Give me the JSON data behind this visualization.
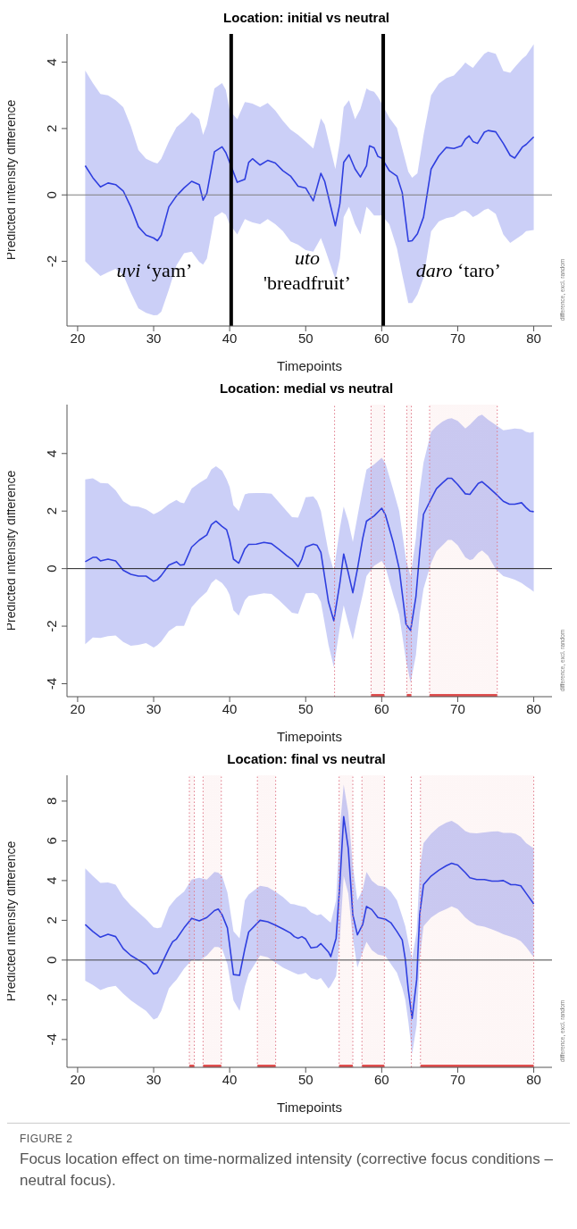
{
  "chart_data": [
    {
      "type": "line",
      "title": "Location: initial vs neutral",
      "xlabel": "Timepoints",
      "ylabel": "Predicted intensity difference",
      "xlim": [
        18.6,
        82.4
      ],
      "xticks": [
        20,
        30,
        40,
        50,
        60,
        70,
        80
      ],
      "ylim": [
        -3.95,
        4.85
      ],
      "yticks": [
        -2,
        0,
        2,
        4
      ],
      "marker": "none",
      "series": [
        {
          "color": "#2f3fdf",
          "x": [
            21,
            22,
            23,
            24,
            25,
            26,
            27,
            28,
            29,
            30,
            30.5,
            31,
            32,
            33,
            34,
            35,
            36,
            36.5,
            37,
            38,
            39,
            39.5,
            40,
            41,
            42,
            42.5,
            43,
            44,
            45,
            46,
            47,
            48,
            49,
            50,
            51,
            52,
            52.5,
            53.9,
            54.5,
            55,
            55.7,
            56.5,
            57.2,
            58,
            58.4,
            59,
            59.5,
            60,
            61,
            62,
            62.7,
            63.5,
            64,
            64.7,
            65.5,
            66.5,
            67.5,
            68.5,
            69.5,
            70.5,
            71,
            71.5,
            72,
            72.6,
            73.5,
            74,
            75,
            76,
            76.9,
            77.5,
            78.5,
            79,
            80
          ],
          "values": [
            0.88,
            0.52,
            0.24,
            0.36,
            0.31,
            0.12,
            -0.36,
            -0.96,
            -1.21,
            -1.3,
            -1.38,
            -1.21,
            -0.36,
            -0.03,
            0.21,
            0.41,
            0.31,
            -0.16,
            0.05,
            1.3,
            1.45,
            1.27,
            0.98,
            0.38,
            0.47,
            0.98,
            1.09,
            0.9,
            1.04,
            0.96,
            0.73,
            0.57,
            0.26,
            0.21,
            -0.18,
            0.65,
            0.41,
            -0.93,
            -0.26,
            0.98,
            1.21,
            0.78,
            0.54,
            0.88,
            1.48,
            1.42,
            1.16,
            1.11,
            0.73,
            0.57,
            0.07,
            -1.4,
            -1.38,
            -1.17,
            -0.67,
            0.78,
            1.17,
            1.43,
            1.4,
            1.48,
            1.68,
            1.78,
            1.61,
            1.55,
            1.89,
            1.94,
            1.9,
            1.55,
            1.19,
            1.11,
            1.44,
            1.52,
            1.75
          ],
          "lower": [
            -2.0,
            -2.23,
            -2.44,
            -2.33,
            -2.23,
            -2.41,
            -2.95,
            -3.42,
            -3.55,
            -3.63,
            -3.62,
            -3.52,
            -2.85,
            -2.12,
            -1.76,
            -1.71,
            -2.02,
            -2.1,
            -1.92,
            -0.67,
            -0.52,
            -0.6,
            -0.88,
            -1.19,
            -0.73,
            -0.78,
            -0.83,
            -0.88,
            -0.73,
            -0.88,
            -1.09,
            -1.4,
            -1.5,
            -1.66,
            -1.71,
            -1.3,
            -1.6,
            -2.54,
            -1.92,
            -0.67,
            -0.36,
            -0.88,
            -1.19,
            -0.36,
            -0.45,
            -0.62,
            -0.62,
            -0.62,
            -0.88,
            -1.61,
            -2.4,
            -3.26,
            -3.26,
            -3.0,
            -2.5,
            -1.1,
            -0.8,
            -0.7,
            -0.65,
            -0.5,
            -0.47,
            -0.55,
            -0.67,
            -0.6,
            -0.45,
            -0.41,
            -0.57,
            -1.19,
            -1.45,
            -1.35,
            -1.2,
            -1.09,
            -1.06
          ],
          "upper": [
            3.75,
            3.37,
            3.04,
            3.0,
            2.85,
            2.64,
            2.07,
            1.35,
            1.09,
            0.98,
            0.95,
            1.09,
            1.61,
            2.04,
            2.23,
            2.49,
            2.28,
            1.81,
            2.12,
            3.21,
            3.37,
            3.16,
            2.54,
            2.28,
            2.8,
            2.78,
            2.75,
            2.64,
            2.77,
            2.54,
            2.23,
            1.97,
            1.81,
            1.61,
            1.4,
            2.31,
            2.12,
            0.78,
            1.61,
            2.64,
            2.85,
            2.28,
            2.59,
            3.21,
            3.15,
            3.11,
            2.95,
            2.75,
            2.33,
            2.02,
            1.4,
            0.7,
            0.52,
            0.65,
            1.8,
            3.0,
            3.35,
            3.52,
            3.6,
            3.85,
            3.99,
            3.9,
            3.83,
            4.0,
            4.25,
            4.32,
            4.25,
            3.73,
            3.68,
            3.85,
            4.1,
            4.2,
            4.54
          ]
        }
      ],
      "ref_lines": [
        {
          "axis": "y",
          "value": 0,
          "color": "#7f7f7f",
          "line_style": "solid"
        },
        {
          "axis": "x",
          "value": 40.2,
          "color": "#000000",
          "line_style": "solid"
        },
        {
          "axis": "x",
          "value": 60.2,
          "color": "#000000",
          "line_style": "solid"
        }
      ],
      "annotations": [
        "uvi ‘yam’",
        "uto\n'breadfruit’",
        "daro ‘taro’",
        "difference, excl. random"
      ]
    },
    {
      "type": "line",
      "title": "Location: medial vs neutral",
      "xlabel": "Timepoints",
      "ylabel": "Predicted intensity difference",
      "xlim": [
        18.6,
        82.4
      ],
      "xticks": [
        20,
        30,
        40,
        50,
        60,
        70,
        80
      ],
      "ylim": [
        -4.45,
        5.7
      ],
      "yticks": [
        -4,
        -2,
        0,
        2,
        4
      ],
      "marker": "none",
      "series": [
        {
          "color": "#2f3fdf",
          "x": [
            21,
            22,
            22.5,
            23,
            24,
            25,
            26,
            27,
            28,
            29,
            30,
            30.5,
            31,
            32,
            33,
            33.5,
            34,
            35,
            36,
            37,
            37.6,
            38.2,
            39,
            39.6,
            40,
            40.5,
            41.2,
            42,
            42.5,
            43.5,
            44.5,
            45.5,
            46.5,
            47.5,
            48.2,
            49,
            49.5,
            50,
            51,
            51.5,
            52,
            53,
            53.7,
            54.5,
            55,
            55.6,
            56.2,
            56.8,
            57.5,
            58,
            59,
            60,
            60.5,
            61.5,
            62.3,
            63.2,
            63.8,
            64.5,
            65,
            65.5,
            66.5,
            67.2,
            68,
            68.7,
            69.2,
            70,
            71,
            71.6,
            72,
            72.7,
            73.2,
            74,
            75,
            76,
            76.8,
            77.5,
            78.4,
            79,
            79.5,
            80
          ],
          "values": [
            0.24,
            0.39,
            0.39,
            0.27,
            0.33,
            0.27,
            -0.06,
            -0.2,
            -0.26,
            -0.26,
            -0.44,
            -0.38,
            -0.24,
            0.12,
            0.24,
            0.12,
            0.14,
            0.75,
            0.99,
            1.17,
            1.53,
            1.65,
            1.47,
            1.35,
            0.99,
            0.33,
            0.19,
            0.69,
            0.84,
            0.85,
            0.91,
            0.87,
            0.67,
            0.45,
            0.32,
            0.07,
            0.33,
            0.75,
            0.85,
            0.81,
            0.57,
            -1.16,
            -1.81,
            -0.5,
            0.51,
            -0.14,
            -0.84,
            -0.02,
            1.05,
            1.65,
            1.83,
            2.1,
            1.86,
            0.93,
            0,
            -1.93,
            -2.15,
            -0.98,
            0.57,
            1.89,
            2.42,
            2.78,
            2.98,
            3.14,
            3.14,
            2.92,
            2.6,
            2.58,
            2.72,
            2.96,
            3.02,
            2.84,
            2.6,
            2.34,
            2.24,
            2.24,
            2.29,
            2.12,
            2.0,
            1.98
          ],
          "lower": [
            -2.63,
            -2.39,
            -2.4,
            -2.41,
            -2.35,
            -2.32,
            -2.55,
            -2.68,
            -2.65,
            -2.59,
            -2.74,
            -2.66,
            -2.53,
            -2.17,
            -1.99,
            -1.99,
            -1.99,
            -1.34,
            -1.04,
            -0.8,
            -0.5,
            -0.36,
            -0.5,
            -0.7,
            -0.92,
            -1.45,
            -1.63,
            -1.1,
            -0.95,
            -0.9,
            -0.86,
            -0.88,
            -1.1,
            -1.35,
            -1.53,
            -1.57,
            -1.2,
            -0.86,
            -0.84,
            -0.9,
            -1.16,
            -2.65,
            -3.42,
            -2.03,
            -1.28,
            -1.9,
            -2.47,
            -1.7,
            -0.9,
            -0.26,
            0.1,
            0.27,
            0.05,
            -0.9,
            -1.6,
            -3.2,
            -3.96,
            -3.01,
            -1.57,
            -0.7,
            0.2,
            0.6,
            0.81,
            1.0,
            1.0,
            0.81,
            0.39,
            0.3,
            0.33,
            0.55,
            0.63,
            0.45,
            -0.02,
            -0.26,
            -0.32,
            -0.38,
            -0.5,
            -0.62,
            -0.7,
            -0.8
          ],
          "upper": [
            3.1,
            3.14,
            3.06,
            2.98,
            2.96,
            2.72,
            2.34,
            2.18,
            2.15,
            2.06,
            1.89,
            1.95,
            2.03,
            2.24,
            2.39,
            2.3,
            2.27,
            2.78,
            2.98,
            3.14,
            3.45,
            3.56,
            3.4,
            3.1,
            2.84,
            2.2,
            2.0,
            2.58,
            2.62,
            2.63,
            2.63,
            2.6,
            2.3,
            2.0,
            1.79,
            1.77,
            2.1,
            2.48,
            2.51,
            2.35,
            2.0,
            0.57,
            -0.08,
            1.41,
            2.15,
            1.65,
            0.93,
            1.8,
            2.78,
            3.44,
            3.62,
            3.85,
            3.65,
            2.75,
            2.0,
            0.3,
            -0.26,
            1.05,
            2.72,
            3.68,
            4.75,
            4.95,
            5.11,
            5.2,
            5.23,
            5.13,
            4.87,
            5.0,
            5.11,
            5.3,
            5.35,
            5.17,
            4.99,
            4.81,
            4.84,
            4.87,
            4.85,
            4.75,
            4.72,
            4.75
          ]
        }
      ],
      "ref_lines": [
        {
          "axis": "y",
          "value": 0,
          "color": "#222222",
          "line_style": "solid"
        },
        {
          "axis": "x",
          "value": 53.8,
          "color": "#e07a8a",
          "line_style": "dotted"
        },
        {
          "axis": "x",
          "value": 58.6,
          "color": "#e07a8a",
          "line_style": "dotted"
        },
        {
          "axis": "x",
          "value": 60.35,
          "color": "#e07a8a",
          "line_style": "dotted"
        },
        {
          "axis": "x",
          "value": 63.3,
          "color": "#e07a8a",
          "line_style": "dotted"
        },
        {
          "axis": "x",
          "value": 63.9,
          "color": "#e07a8a",
          "line_style": "dotted"
        },
        {
          "axis": "x",
          "value": 66.3,
          "color": "#e07a8a",
          "line_style": "dotted"
        },
        {
          "axis": "x",
          "value": 75.2,
          "color": "#e07a8a",
          "line_style": "dotted"
        }
      ],
      "bands": [
        {
          "axis": "x",
          "from": 58.6,
          "to": 60.35,
          "color": "#e05050"
        },
        {
          "axis": "x",
          "from": 63.3,
          "to": 63.9,
          "color": "#e05050"
        },
        {
          "axis": "x",
          "from": 66.3,
          "to": 75.2,
          "color": "#e05050"
        }
      ],
      "annotations": [
        "difference, excl. random"
      ]
    },
    {
      "type": "line",
      "title": "Location: final vs neutral",
      "xlabel": "Timepoints",
      "ylabel": "Predicted intensity difference",
      "xlim": [
        18.6,
        82.4
      ],
      "xticks": [
        20,
        30,
        40,
        50,
        60,
        70,
        80
      ],
      "ylim": [
        -5.4,
        9.3
      ],
      "yticks": [
        -4,
        -2,
        0,
        2,
        4,
        6,
        8
      ],
      "marker": "none",
      "series": [
        {
          "color": "#2f3fdf",
          "x": [
            21,
            22,
            23,
            24,
            25,
            26,
            27,
            28,
            29,
            30,
            30.5,
            31,
            32,
            32.5,
            33,
            34,
            35,
            36,
            37,
            38,
            38.5,
            39,
            39.7,
            40.5,
            41.3,
            42,
            42.5,
            44,
            45,
            46,
            47,
            48,
            48.5,
            49,
            49.5,
            50,
            50.7,
            51.5,
            52,
            53,
            53.3,
            54,
            54.5,
            55,
            55.6,
            56.2,
            56.8,
            57.5,
            58,
            58.7,
            59.5,
            60.5,
            61.2,
            62,
            62.7,
            63.1,
            63.5,
            64,
            64.6,
            65,
            65.5,
            66.5,
            67.5,
            68.5,
            69.2,
            70,
            71,
            71.6,
            72.5,
            73.5,
            74.5,
            75.3,
            76,
            77,
            77.6,
            78.3,
            79,
            80
          ],
          "values": [
            1.79,
            1.44,
            1.15,
            1.3,
            1.18,
            0.57,
            0.23,
            0,
            -0.24,
            -0.7,
            -0.64,
            -0.24,
            0.57,
            0.92,
            1.06,
            1.62,
            2.1,
            1.97,
            2.14,
            2.49,
            2.57,
            2.28,
            1.62,
            -0.73,
            -0.77,
            0.57,
            1.41,
            2.0,
            1.93,
            1.76,
            1.57,
            1.36,
            1.18,
            1.1,
            1.18,
            1.06,
            0.61,
            0.66,
            0.83,
            0.4,
            0.17,
            1.1,
            3.88,
            7.22,
            5.62,
            2.28,
            1.27,
            1.79,
            2.7,
            2.54,
            2.14,
            2.05,
            1.88,
            1.44,
            1.01,
            0.05,
            -1.51,
            -2.94,
            -0.99,
            2.31,
            3.79,
            4.23,
            4.52,
            4.75,
            4.87,
            4.78,
            4.4,
            4.14,
            4.05,
            4.05,
            3.97,
            3.97,
            4.0,
            3.79,
            3.79,
            3.74,
            3.36,
            2.83
          ],
          "lower": [
            -1.04,
            -1.25,
            -1.51,
            -1.37,
            -1.3,
            -1.69,
            -2.03,
            -2.3,
            -2.56,
            -2.99,
            -2.9,
            -2.56,
            -1.43,
            -1.2,
            -0.99,
            -0.43,
            0,
            -0.03,
            0.23,
            0.66,
            0.66,
            0.57,
            -0.2,
            -2.03,
            -2.56,
            -1.34,
            -0.7,
            0.23,
            0.14,
            -0.12,
            -0.38,
            -0.56,
            -0.65,
            -0.73,
            -0.7,
            -0.64,
            -0.9,
            -1.0,
            -0.9,
            -1.43,
            -1.3,
            -0.82,
            1.1,
            4.23,
            3.36,
            1.1,
            -0.38,
            0.4,
            0.92,
            0.5,
            0.28,
            0.2,
            -0.2,
            -0.64,
            -1.4,
            -2.0,
            -3.08,
            -4.73,
            -3.25,
            0.05,
            1.7,
            2.14,
            2.4,
            2.57,
            2.7,
            2.57,
            2.14,
            1.95,
            1.75,
            1.68,
            1.55,
            1.42,
            1.3,
            1.18,
            1.1,
            0.95,
            0.66,
            0.14
          ],
          "upper": [
            4.61,
            4.23,
            3.88,
            3.91,
            3.79,
            3.18,
            2.75,
            2.4,
            2.05,
            1.65,
            1.6,
            1.65,
            2.66,
            2.9,
            3.13,
            3.44,
            4.05,
            4.14,
            4.05,
            4.43,
            4.4,
            4.23,
            3.4,
            1.44,
            1.1,
            3.01,
            3.3,
            3.74,
            3.67,
            3.44,
            3.18,
            2.83,
            2.8,
            2.75,
            2.7,
            2.66,
            2.4,
            2.25,
            2.31,
            1.97,
            1.88,
            3.01,
            6.66,
            8.83,
            7.44,
            4.75,
            3.01,
            3.53,
            4.43,
            4.0,
            3.75,
            3.68,
            3.45,
            3.01,
            2.2,
            1.7,
            0.9,
            0.05,
            1.44,
            4.57,
            5.88,
            6.35,
            6.7,
            6.92,
            7.01,
            6.83,
            6.49,
            6.4,
            6.38,
            6.42,
            6.47,
            6.48,
            6.4,
            6.4,
            6.35,
            6.2,
            5.88,
            5.62
          ]
        }
      ],
      "ref_lines": [
        {
          "axis": "y",
          "value": 0,
          "color": "#444444",
          "line_style": "solid"
        },
        {
          "axis": "x",
          "value": 34.7,
          "color": "#e07a8a",
          "line_style": "dotted"
        },
        {
          "axis": "x",
          "value": 35.35,
          "color": "#e07a8a",
          "line_style": "dotted"
        },
        {
          "axis": "x",
          "value": 36.5,
          "color": "#e07a8a",
          "line_style": "dotted"
        },
        {
          "axis": "x",
          "value": 38.9,
          "color": "#e07a8a",
          "line_style": "dotted"
        },
        {
          "axis": "x",
          "value": 43.65,
          "color": "#e07a8a",
          "line_style": "dotted"
        },
        {
          "axis": "x",
          "value": 46.05,
          "color": "#e07a8a",
          "line_style": "dotted"
        },
        {
          "axis": "x",
          "value": 54.4,
          "color": "#e07a8a",
          "line_style": "dotted"
        },
        {
          "axis": "x",
          "value": 56.2,
          "color": "#e07a8a",
          "line_style": "dotted"
        },
        {
          "axis": "x",
          "value": 57.4,
          "color": "#e07a8a",
          "line_style": "dotted"
        },
        {
          "axis": "x",
          "value": 60.35,
          "color": "#e07a8a",
          "line_style": "dotted"
        },
        {
          "axis": "x",
          "value": 63.9,
          "color": "#e07a8a",
          "line_style": "dotted"
        },
        {
          "axis": "x",
          "value": 65.1,
          "color": "#e07a8a",
          "line_style": "dotted"
        },
        {
          "axis": "x",
          "value": 80,
          "color": "#e07a8a",
          "line_style": "dotted"
        }
      ],
      "bands": [
        {
          "axis": "x",
          "from": 34.7,
          "to": 35.35,
          "color": "#e05050"
        },
        {
          "axis": "x",
          "from": 36.5,
          "to": 38.9,
          "color": "#e05050"
        },
        {
          "axis": "x",
          "from": 43.65,
          "to": 46.05,
          "color": "#e05050"
        },
        {
          "axis": "x",
          "from": 54.4,
          "to": 56.2,
          "color": "#e05050"
        },
        {
          "axis": "x",
          "from": 57.4,
          "to": 60.35,
          "color": "#e05050"
        },
        {
          "axis": "x",
          "from": 65.1,
          "to": 80,
          "color": "#e05050"
        }
      ],
      "annotations": [
        "difference, excl. random",
        "FIGURE 2",
        "Focus location effect on time-normalized intensity (corrective focus conditions – neutral focus)."
      ]
    }
  ]
}
